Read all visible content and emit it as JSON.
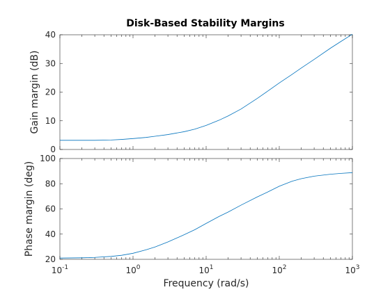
{
  "figure": {
    "title": "Disk-Based Stability Margins"
  },
  "chart_data": [
    {
      "type": "line",
      "xscale": "log",
      "xlim": [
        0.1,
        1000
      ],
      "ylim": [
        0,
        40
      ],
      "xlabel": "",
      "ylabel": "Gain margin (dB)",
      "yticks": [
        "0",
        "10",
        "20",
        "30",
        "40"
      ],
      "grid": false,
      "color": "#0072bd",
      "series": [
        {
          "x": [
            0.1,
            0.2,
            0.3,
            0.5,
            0.7,
            1,
            1.5,
            2,
            3,
            5,
            7,
            10,
            15,
            20,
            30,
            50,
            70,
            100,
            150,
            200,
            300,
            500,
            700,
            1000
          ],
          "values": [
            3.2,
            3.2,
            3.2,
            3.3,
            3.5,
            3.8,
            4.2,
            4.6,
            5.2,
            6.2,
            7.1,
            8.4,
            10.2,
            11.7,
            14.1,
            17.8,
            20.4,
            23.2,
            26.2,
            28.4,
            31.4,
            35.3,
            37.7,
            40.2
          ]
        }
      ]
    },
    {
      "type": "line",
      "xscale": "log",
      "xlim": [
        0.1,
        1000
      ],
      "ylim": [
        20,
        100
      ],
      "xlabel": "Frequency (rad/s)",
      "ylabel": "Phase margin (deg)",
      "yticks": [
        "20",
        "40",
        "60",
        "80",
        "100"
      ],
      "xticks": [
        {
          "base": "10",
          "exp": "-1"
        },
        {
          "base": "10",
          "exp": "0"
        },
        {
          "base": "10",
          "exp": "1"
        },
        {
          "base": "10",
          "exp": "2"
        },
        {
          "base": "10",
          "exp": "3"
        }
      ],
      "grid": false,
      "color": "#0072bd",
      "series": [
        {
          "x": [
            0.1,
            0.2,
            0.3,
            0.5,
            0.7,
            1,
            1.5,
            2,
            3,
            5,
            7,
            10,
            15,
            20,
            30,
            50,
            70,
            100,
            150,
            200,
            300,
            500,
            700,
            1000
          ],
          "values": [
            21,
            21.2,
            21.5,
            22.3,
            23.2,
            24.8,
            27.5,
            29.8,
            33.8,
            39.5,
            43.5,
            48.5,
            54,
            57.5,
            63,
            69.5,
            73.5,
            78,
            82,
            84,
            86,
            87.5,
            88.2,
            88.8
          ]
        }
      ]
    }
  ]
}
